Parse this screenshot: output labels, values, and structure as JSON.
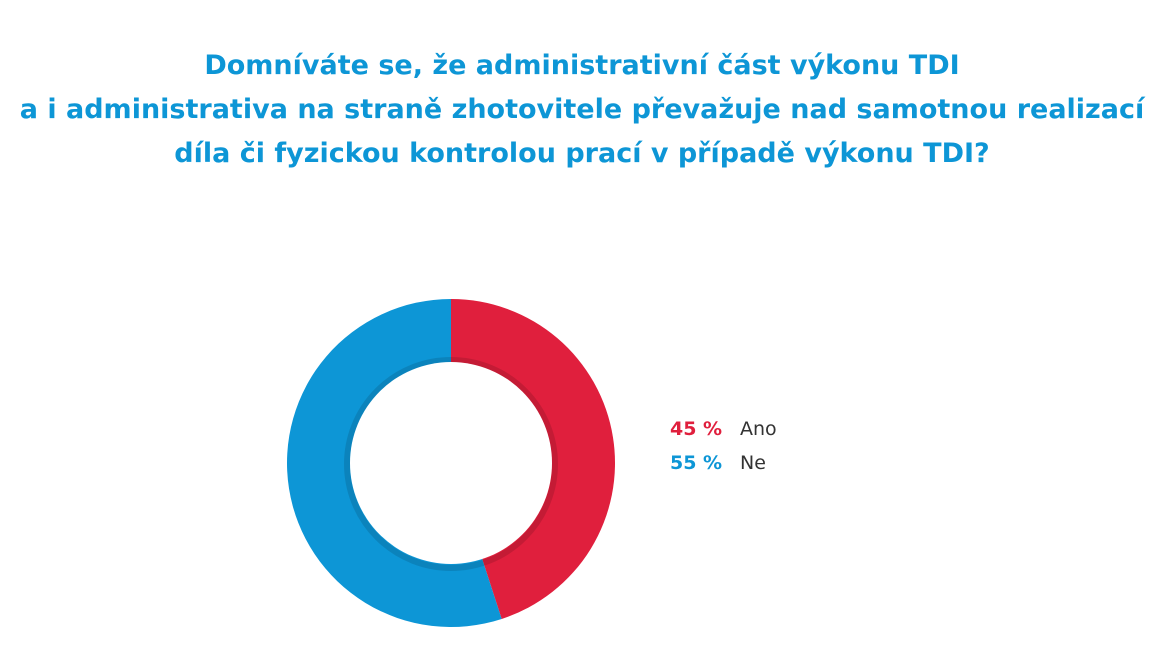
{
  "chart_data": {
    "type": "pie",
    "variant": "donut",
    "title_lines": [
      "Domníváte se, že administrativní část výkonu TDI",
      "a i administrativa na straně zhotovitele převažuje nad samotnou realizací",
      "díla či fyzickou kontrolou prací v případě výkonu TDI?"
    ],
    "slices": [
      {
        "label": "Ano",
        "value": 45,
        "value_label": "45 %",
        "color": "#e01f3d"
      },
      {
        "label": "Ne",
        "value": 55,
        "value_label": "55 %",
        "color": "#0d96d6"
      }
    ],
    "legend_position": "right"
  }
}
